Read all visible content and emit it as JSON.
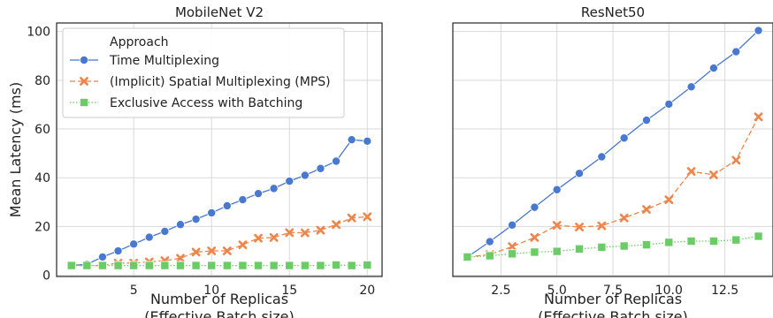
{
  "chart_data": [
    {
      "type": "line",
      "title": "MobileNet V2",
      "xlabel": "Number of Replicas",
      "xlabel_sub": "(Effective Batch size)",
      "ylabel": "Mean Latency (ms)",
      "xlim": [
        0.05,
        20.95
      ],
      "ylim": [
        -0.5,
        103.5
      ],
      "xticks": [
        5,
        10,
        15,
        20
      ],
      "yticks": [
        0,
        20,
        40,
        60,
        80,
        100
      ],
      "grid": true,
      "legend": {
        "title": "Approach",
        "placement": "top-left",
        "entries": [
          "Time Multiplexing",
          "(Implicit) Spatial Multiplexing (MPS)",
          "Exclusive Access with Batching"
        ]
      },
      "series": [
        {
          "name": "Time Multiplexing",
          "color": "#4878d0",
          "marker": "circle",
          "dash": "solid",
          "x": [
            1,
            2,
            3,
            4,
            5,
            6,
            7,
            8,
            9,
            10,
            11,
            12,
            13,
            14,
            15,
            16,
            17,
            18,
            19,
            20
          ],
          "values": [
            4,
            4.5,
            7.5,
            10,
            12.8,
            15.6,
            18,
            20.8,
            23,
            25.6,
            28.5,
            31,
            33.5,
            35.6,
            38.6,
            41,
            43.8,
            46.8,
            55.6,
            55
          ]
        },
        {
          "name": "(Implicit) Spatial Multiplexing (MPS)",
          "color": "#ee854a",
          "marker": "x",
          "dash": "dashed",
          "x": [
            1,
            2,
            3,
            4,
            5,
            6,
            7,
            8,
            9,
            10,
            11,
            12,
            13,
            14,
            15,
            16,
            17,
            18,
            19,
            20
          ],
          "values": [
            4,
            4,
            4,
            5,
            5,
            5.5,
            6,
            7,
            9.5,
            10,
            10,
            12.5,
            15.2,
            15.5,
            17.5,
            17.4,
            18.5,
            20.8,
            23.5,
            24
          ]
        },
        {
          "name": "Exclusive Access with Batching",
          "color": "#6acc64",
          "marker": "square",
          "dash": "dotted",
          "x": [
            1,
            2,
            3,
            4,
            5,
            6,
            7,
            8,
            9,
            10,
            11,
            12,
            13,
            14,
            15,
            16,
            17,
            18,
            19,
            20
          ],
          "values": [
            4,
            4,
            4,
            4,
            4,
            4,
            4,
            4,
            4,
            4,
            4,
            4,
            4,
            4,
            4,
            4,
            4,
            4.2,
            4,
            4.2
          ]
        }
      ]
    },
    {
      "type": "line",
      "title": "ResNet50",
      "xlabel": "Number of Replicas",
      "xlabel_sub": "(Effective Batch size)",
      "ylabel": "",
      "xlim": [
        0.35,
        14.65
      ],
      "ylim": [
        -0.5,
        103.5
      ],
      "xticks": [
        2.5,
        5.0,
        7.5,
        10.0,
        12.5
      ],
      "xtick_labels": [
        "2.5",
        "5.0",
        "7.5",
        "10.0",
        "12.5"
      ],
      "yticks": [
        0,
        20,
        40,
        60,
        80,
        100
      ],
      "grid": true,
      "series": [
        {
          "name": "Time Multiplexing",
          "color": "#4878d0",
          "marker": "circle",
          "dash": "solid",
          "x": [
            1,
            2,
            3,
            4,
            5,
            6,
            7,
            8,
            9,
            10,
            11,
            12,
            13,
            14
          ],
          "values": [
            7.5,
            13.8,
            20.6,
            27.9,
            35.1,
            41.8,
            48.6,
            56.3,
            63.6,
            70.2,
            77.3,
            85,
            91.7,
            100.4
          ]
        },
        {
          "name": "(Implicit) Spatial Multiplexing (MPS)",
          "color": "#ee854a",
          "marker": "x",
          "dash": "dashed",
          "x": [
            1,
            2,
            3,
            4,
            5,
            6,
            7,
            8,
            9,
            10,
            11,
            12,
            13,
            14
          ],
          "values": [
            7.5,
            8.5,
            11.8,
            15.5,
            20.5,
            19.8,
            20.3,
            23.5,
            27,
            31,
            42.6,
            41.2,
            47.2,
            65
          ]
        },
        {
          "name": "Exclusive Access with Batching",
          "color": "#6acc64",
          "marker": "square",
          "dash": "dotted",
          "x": [
            1,
            2,
            3,
            4,
            5,
            6,
            7,
            8,
            9,
            10,
            11,
            12,
            13,
            14
          ],
          "values": [
            7.5,
            8,
            8.8,
            9.5,
            9.8,
            10.8,
            11.5,
            12,
            12.5,
            13.5,
            14,
            14,
            14.5,
            16
          ]
        }
      ]
    }
  ]
}
